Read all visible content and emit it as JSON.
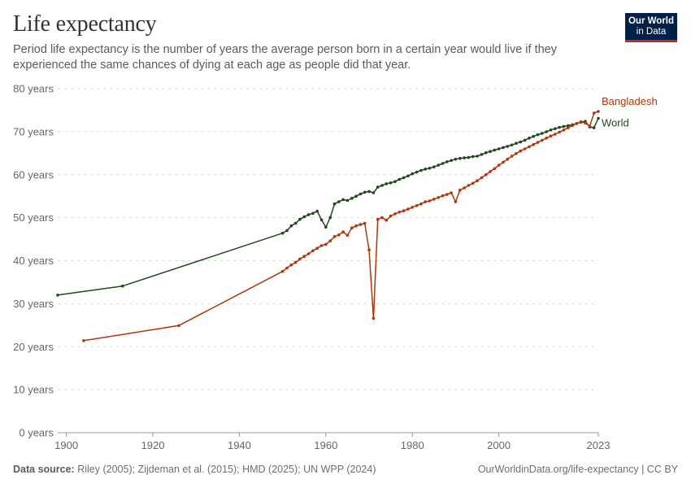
{
  "header": {
    "title": "Life expectancy",
    "subtitle": "Period life expectancy is the number of years the average person born in a certain year would live if they experienced the same chances of dying at each age as people did that year.",
    "logo_line1": "Our World",
    "logo_line2": "in Data"
  },
  "footer": {
    "source_label": "Data source:",
    "source_text": "Riley (2005); Zijdeman et al. (2015); HMD (2025); UN WPP (2024)",
    "link_text": "OurWorldinData.org/life-expectancy | CC BY"
  },
  "chart_data": {
    "type": "line",
    "title": "Life expectancy",
    "xlim": [
      1898,
      2023
    ],
    "ylim": [
      0,
      80
    ],
    "x_ticks": [
      1900,
      1920,
      1940,
      1960,
      1980,
      2000,
      2023
    ],
    "y_ticks": [
      0,
      10,
      20,
      30,
      40,
      50,
      60,
      70,
      80
    ],
    "y_tick_labels": [
      "0 years",
      "10 years",
      "20 years",
      "30 years",
      "40 years",
      "50 years",
      "60 years",
      "70 years",
      "80 years"
    ],
    "grid": "horizontal dashed",
    "legend": "inline labels at line ends (right)",
    "series": [
      {
        "name": "World",
        "color": "#1d4a17",
        "x": [
          1898,
          1913,
          1950,
          1951,
          1952,
          1953,
          1954,
          1955,
          1956,
          1957,
          1958,
          1959,
          1960,
          1961,
          1962,
          1963,
          1964,
          1965,
          1966,
          1967,
          1968,
          1969,
          1970,
          1971,
          1972,
          1973,
          1974,
          1975,
          1976,
          1977,
          1978,
          1979,
          1980,
          1981,
          1982,
          1983,
          1984,
          1985,
          1986,
          1987,
          1988,
          1989,
          1990,
          1991,
          1992,
          1993,
          1994,
          1995,
          1996,
          1997,
          1998,
          1999,
          2000,
          2001,
          2002,
          2003,
          2004,
          2005,
          2006,
          2007,
          2008,
          2009,
          2010,
          2011,
          2012,
          2013,
          2014,
          2015,
          2016,
          2017,
          2018,
          2019,
          2020,
          2021,
          2022,
          2023
        ],
        "y": [
          32.0,
          34.1,
          46.4,
          47.0,
          48.1,
          48.7,
          49.6,
          50.2,
          50.7,
          51.0,
          51.5,
          49.5,
          47.8,
          50.0,
          53.2,
          53.7,
          54.2,
          54.0,
          54.5,
          55.0,
          55.5,
          55.9,
          56.1,
          55.8,
          57.1,
          57.5,
          57.9,
          58.1,
          58.4,
          58.9,
          59.3,
          59.7,
          60.2,
          60.6,
          61.0,
          61.3,
          61.5,
          61.8,
          62.2,
          62.6,
          63.0,
          63.3,
          63.6,
          63.8,
          63.9,
          64.0,
          64.2,
          64.3,
          64.7,
          65.1,
          65.4,
          65.7,
          66.0,
          66.3,
          66.6,
          66.9,
          67.3,
          67.6,
          68.0,
          68.5,
          68.9,
          69.3,
          69.6,
          70.0,
          70.4,
          70.7,
          71.0,
          71.2,
          71.4,
          71.6,
          71.9,
          72.2,
          72.4,
          71.1,
          70.9,
          73.1
        ]
      },
      {
        "name": "Bangladesh",
        "color": "#b13507",
        "x": [
          1904,
          1926,
          1950,
          1951,
          1952,
          1953,
          1954,
          1955,
          1956,
          1957,
          1958,
          1959,
          1960,
          1961,
          1962,
          1963,
          1964,
          1965,
          1966,
          1967,
          1968,
          1969,
          1970,
          1971,
          1972,
          1973,
          1974,
          1975,
          1976,
          1977,
          1978,
          1979,
          1980,
          1981,
          1982,
          1983,
          1984,
          1985,
          1986,
          1987,
          1988,
          1989,
          1990,
          1991,
          1992,
          1993,
          1994,
          1995,
          1996,
          1997,
          1998,
          1999,
          2000,
          2001,
          2002,
          2003,
          2004,
          2005,
          2006,
          2007,
          2008,
          2009,
          2010,
          2011,
          2012,
          2013,
          2014,
          2015,
          2016,
          2017,
          2018,
          2019,
          2020,
          2021,
          2022,
          2023
        ],
        "y": [
          21.4,
          24.9,
          37.5,
          38.3,
          39.0,
          39.6,
          40.4,
          41.0,
          41.6,
          42.3,
          42.9,
          43.5,
          43.8,
          44.6,
          45.6,
          46.0,
          46.7,
          45.9,
          47.6,
          48.1,
          48.4,
          48.7,
          42.5,
          26.6,
          49.6,
          50.0,
          49.4,
          50.4,
          50.9,
          51.3,
          51.6,
          52.0,
          52.4,
          52.8,
          53.2,
          53.7,
          53.9,
          54.3,
          54.7,
          55.1,
          55.4,
          55.8,
          53.7,
          56.4,
          56.9,
          57.5,
          58.0,
          58.6,
          59.3,
          60.0,
          60.7,
          61.4,
          62.2,
          62.9,
          63.6,
          64.3,
          64.9,
          65.5,
          66.0,
          66.5,
          67.0,
          67.5,
          68.0,
          68.5,
          69.0,
          69.4,
          69.9,
          70.4,
          70.9,
          71.4,
          71.9,
          72.3,
          72.0,
          71.3,
          74.3,
          74.7
        ]
      }
    ]
  }
}
